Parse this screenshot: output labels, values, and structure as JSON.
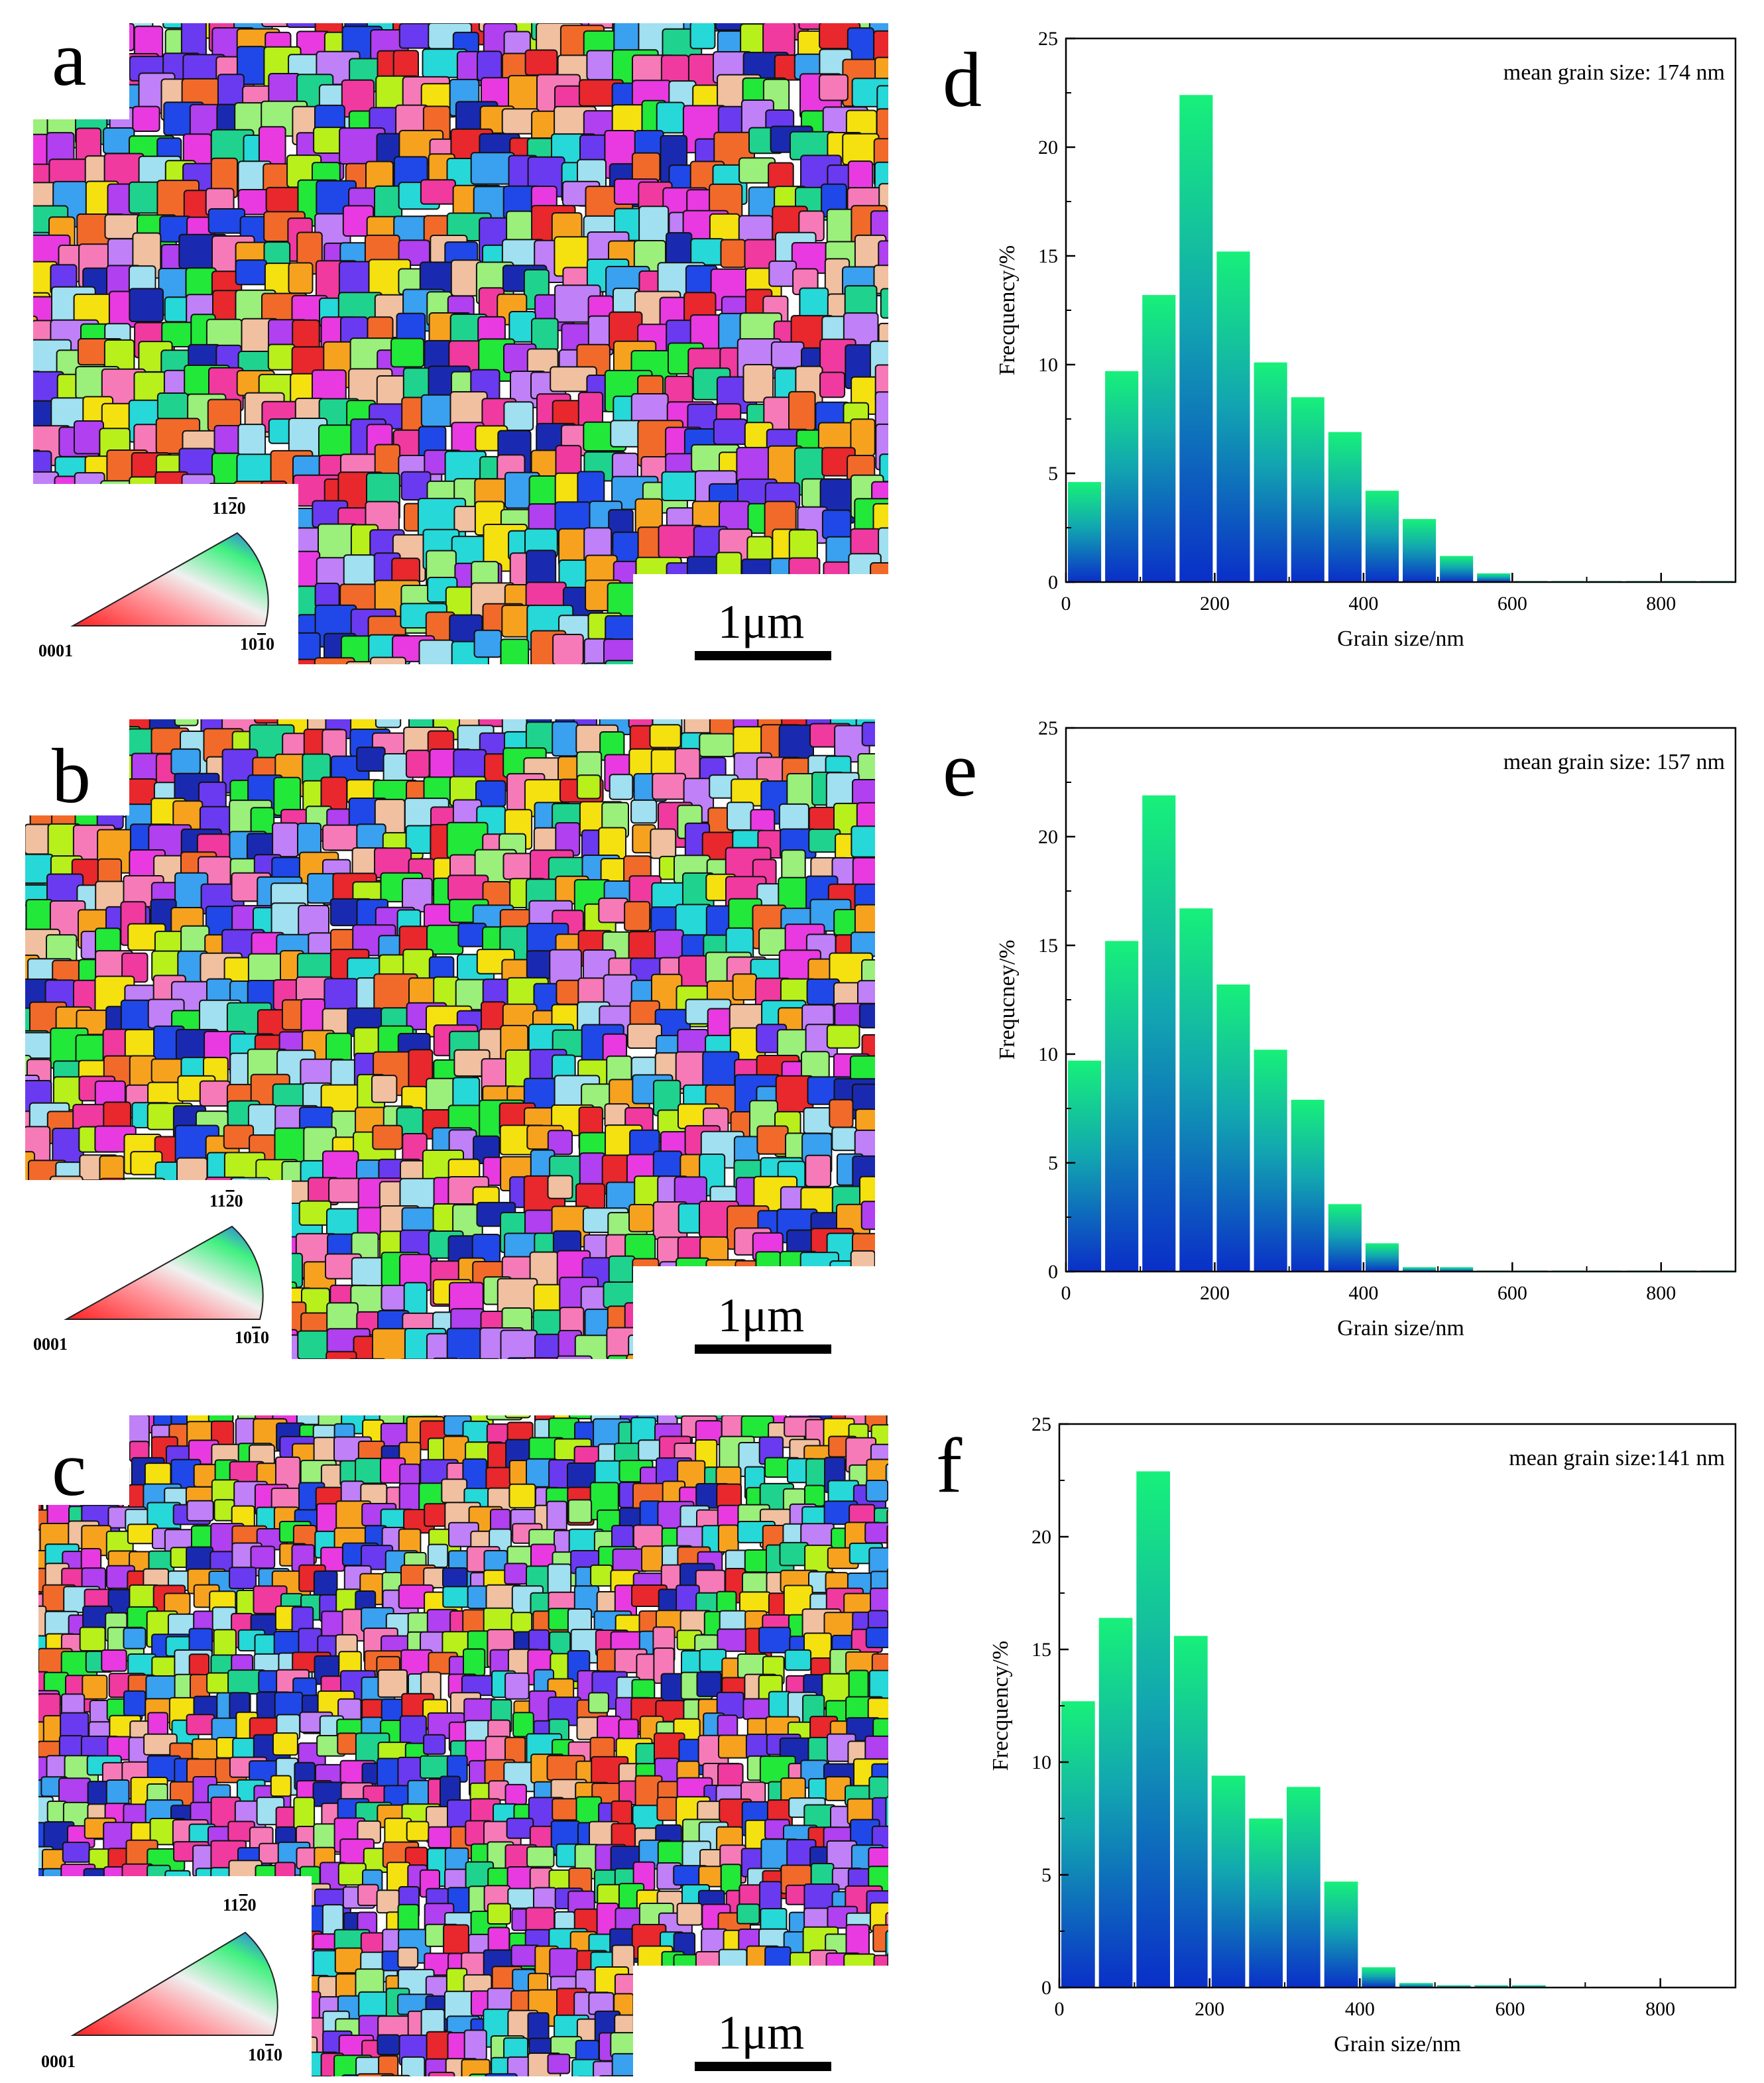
{
  "maps": [
    {
      "letter": "a",
      "scale_label": "1μm",
      "legend": {
        "top": "11–2̅0",
        "top_a": "11",
        "top_b": "2",
        "top_c": "0",
        "left": "0001",
        "right_a": "10",
        "right_b": "1",
        "right_c": "0"
      }
    },
    {
      "letter": "b",
      "scale_label": "1μm",
      "legend": {
        "top_a": "11",
        "top_b": "2",
        "top_c": "0",
        "left": "0001",
        "right_a": "10",
        "right_b": "1",
        "right_c": "0"
      }
    },
    {
      "letter": "c",
      "scale_label": "1μm",
      "legend": {
        "top_a": "11",
        "top_b": "2",
        "top_c": "0",
        "left": "0001",
        "right_a": "10",
        "right_b": "1",
        "right_c": "0"
      }
    }
  ],
  "colors": {
    "bar_top": "#17f07a",
    "bar_mid": "#12a7b0",
    "bar_bottom": "#0a2fc8",
    "grain_palette": [
      "#e8282c",
      "#f26a2a",
      "#f7a21f",
      "#f5e10f",
      "#b8f01c",
      "#22e83a",
      "#1fd38f",
      "#26d8d8",
      "#3aa0f0",
      "#2048e8",
      "#1a2ab0",
      "#6a3af0",
      "#b040f0",
      "#e83ae0",
      "#f03aa0",
      "#f77ab8",
      "#9af07a",
      "#f0c0a0",
      "#a0e0f0",
      "#c080f8"
    ]
  },
  "chart_data": [
    {
      "type": "bar",
      "letter": "d",
      "annotation": "mean grain size: 174 nm",
      "xlabel": "Grain size/nm",
      "ylabel": "Frecquency/%",
      "xlim": [
        0,
        900
      ],
      "ylim": [
        0,
        25
      ],
      "xticks": [
        0,
        200,
        400,
        600,
        800
      ],
      "yticks": [
        0,
        5,
        10,
        15,
        20,
        25
      ],
      "bin_width": 50,
      "x": [
        25,
        75,
        125,
        175,
        225,
        275,
        325,
        375,
        425,
        475,
        525,
        575,
        625,
        675,
        725,
        775,
        825,
        875
      ],
      "values": [
        4.6,
        9.7,
        13.2,
        22.4,
        15.2,
        10.1,
        8.5,
        6.9,
        4.2,
        2.9,
        1.2,
        0.4,
        0.05,
        0.05,
        0.05,
        0.05,
        0.05,
        0.05
      ]
    },
    {
      "type": "bar",
      "letter": "e",
      "annotation": "mean grain size: 157 nm",
      "xlabel": "Grain size/nm",
      "ylabel": "Frequcney/%",
      "xlim": [
        0,
        900
      ],
      "ylim": [
        0,
        25
      ],
      "xticks": [
        0,
        200,
        400,
        600,
        800
      ],
      "yticks": [
        0,
        5,
        10,
        15,
        20,
        25
      ],
      "bin_width": 50,
      "x": [
        25,
        75,
        125,
        175,
        225,
        275,
        325,
        375,
        425,
        475,
        525,
        575,
        625,
        675,
        725,
        775,
        825,
        875
      ],
      "values": [
        9.7,
        15.2,
        21.9,
        16.7,
        13.2,
        10.2,
        7.9,
        3.1,
        1.3,
        0.2,
        0.2,
        0.05,
        0.05,
        0.05,
        0.05,
        0.05,
        0.05,
        0.05
      ]
    },
    {
      "type": "bar",
      "letter": "f",
      "annotation": "mean grain size:141 nm",
      "xlabel": "Grain size/nm",
      "ylabel": "Frecquency/%",
      "xlim": [
        0,
        900
      ],
      "ylim": [
        0,
        25
      ],
      "xticks": [
        0,
        200,
        400,
        600,
        800
      ],
      "yticks": [
        0,
        5,
        10,
        15,
        20,
        25
      ],
      "bin_width": 50,
      "x": [
        25,
        75,
        125,
        175,
        225,
        275,
        325,
        375,
        425,
        475,
        525,
        575,
        625
      ],
      "values": [
        12.7,
        16.4,
        22.9,
        15.6,
        9.4,
        7.5,
        8.9,
        4.7,
        0.9,
        0.2,
        0.1,
        0.1,
        0.1
      ]
    }
  ]
}
